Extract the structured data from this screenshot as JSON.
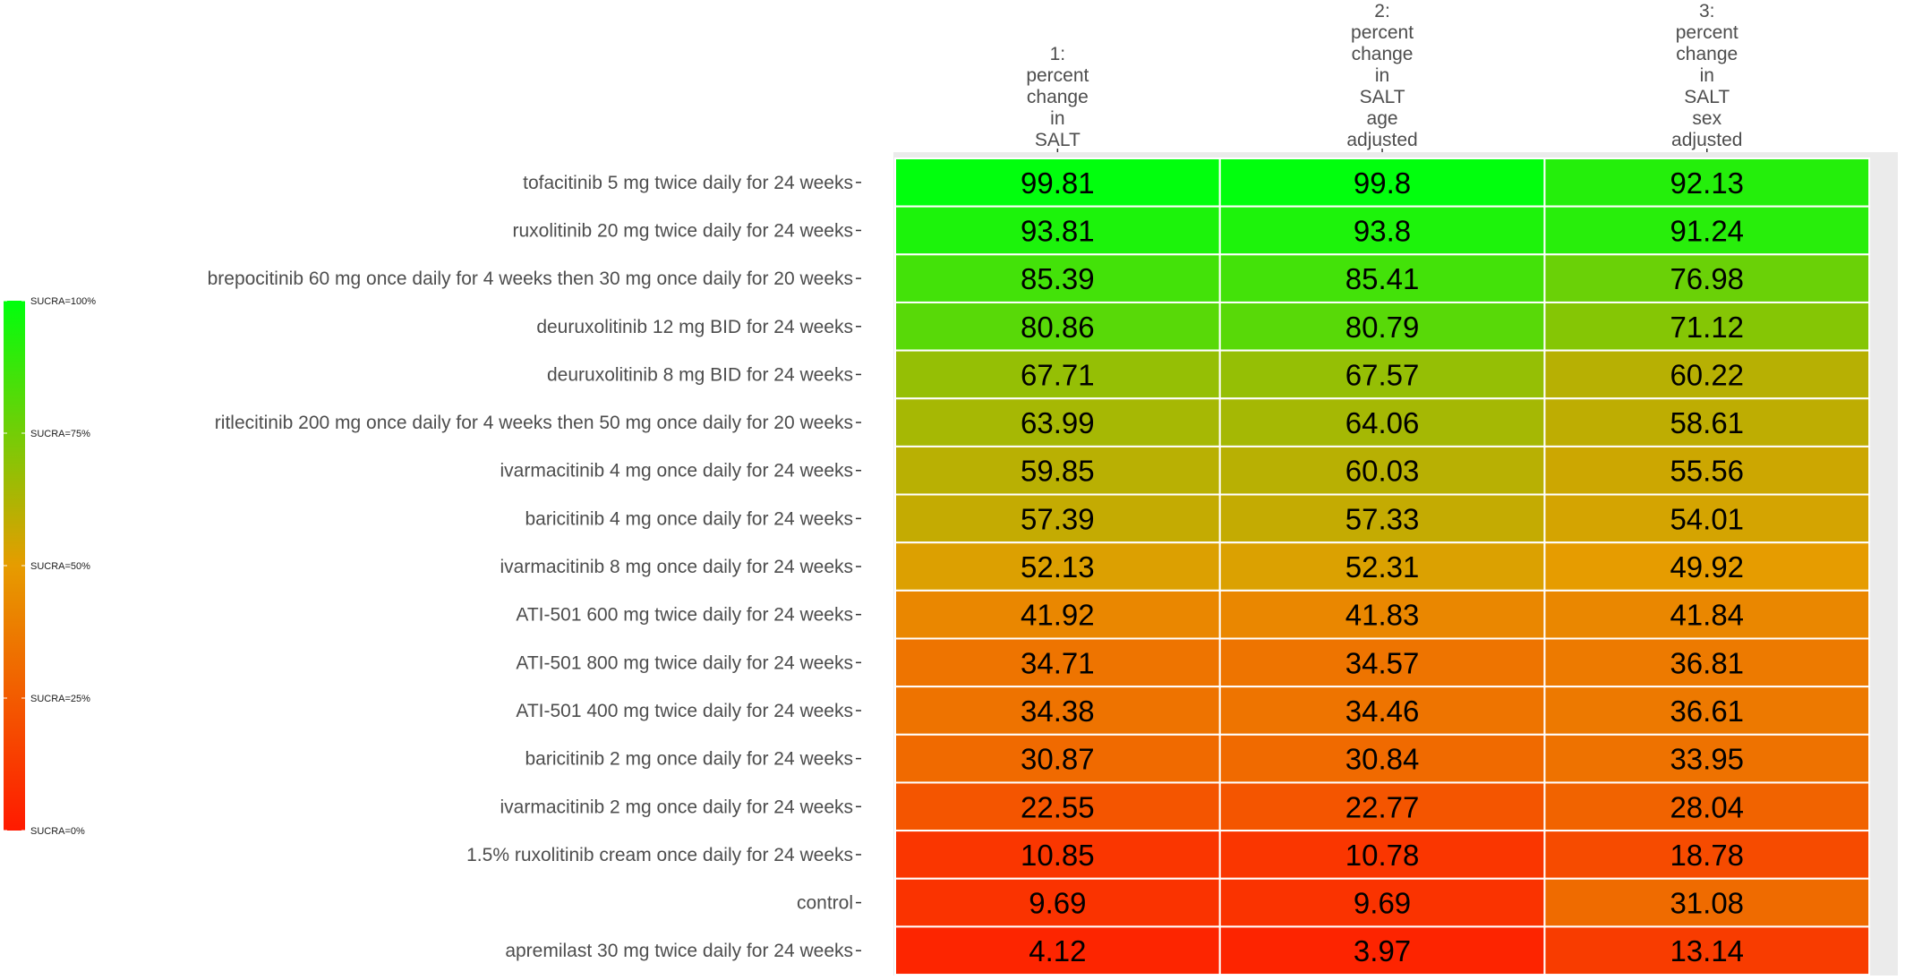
{
  "chart_data": {
    "type": "heatmap",
    "columns": [
      [
        "1:",
        "percent",
        "change",
        "in",
        "SALT"
      ],
      [
        "2:",
        "percent",
        "change",
        "in",
        "SALT",
        "age",
        "adjusted"
      ],
      [
        "3:",
        "percent",
        "change",
        "in",
        "SALT",
        "sex",
        "adjusted"
      ]
    ],
    "rows": [
      "tofacitinib 5 mg twice daily for 24 weeks",
      "ruxolitinib 20 mg twice daily for 24 weeks",
      "brepocitinib 60 mg once daily for 4 weeks then 30 mg once daily for 20 weeks",
      "deuruxolitinib 12 mg BID for 24 weeks",
      "deuruxolitinib 8 mg BID for 24 weeks",
      "ritlecitinib 200 mg once daily for 4 weeks then 50 mg once daily for 20 weeks",
      "ivarmacitinib 4 mg once daily for 24 weeks",
      "baricitinib 4 mg once daily for 24 weeks",
      "ivarmacitinib 8 mg once daily for 24 weeks",
      "ATI-501 600 mg twice daily for 24 weeks",
      "ATI-501 800 mg twice daily for 24 weeks",
      "ATI-501 400 mg twice daily for 24 weeks",
      "baricitinib 2 mg once daily for 24 weeks",
      "ivarmacitinib 2 mg once daily for 24 weeks",
      "1.5% ruxolitinib cream once daily for 24 weeks",
      "control",
      "apremilast 30 mg twice daily for 24 weeks"
    ],
    "values": [
      [
        99.81,
        99.8,
        92.13
      ],
      [
        93.81,
        93.8,
        91.24
      ],
      [
        85.39,
        85.41,
        76.98
      ],
      [
        80.86,
        80.79,
        71.12
      ],
      [
        67.71,
        67.57,
        60.22
      ],
      [
        63.99,
        64.06,
        58.61
      ],
      [
        59.85,
        60.03,
        55.56
      ],
      [
        57.39,
        57.33,
        54.01
      ],
      [
        52.13,
        52.31,
        49.92
      ],
      [
        41.92,
        41.83,
        41.84
      ],
      [
        34.71,
        34.57,
        36.81
      ],
      [
        34.38,
        34.46,
        36.61
      ],
      [
        30.87,
        30.84,
        33.95
      ],
      [
        22.55,
        22.77,
        28.04
      ],
      [
        10.85,
        10.78,
        18.78
      ],
      [
        9.69,
        9.69,
        31.08
      ],
      [
        4.12,
        3.97,
        13.14
      ]
    ],
    "value_labels": [
      [
        "99.81",
        "99.8",
        "92.13"
      ],
      [
        "93.81",
        "93.8",
        "91.24"
      ],
      [
        "85.39",
        "85.41",
        "76.98"
      ],
      [
        "80.86",
        "80.79",
        "71.12"
      ],
      [
        "67.71",
        "67.57",
        "60.22"
      ],
      [
        "63.99",
        "64.06",
        "58.61"
      ],
      [
        "59.85",
        "60.03",
        "55.56"
      ],
      [
        "57.39",
        "57.33",
        "54.01"
      ],
      [
        "52.13",
        "52.31",
        "49.92"
      ],
      [
        "41.92",
        "41.83",
        "41.84"
      ],
      [
        "34.71",
        "34.57",
        "36.81"
      ],
      [
        "34.38",
        "34.46",
        "36.61"
      ],
      [
        "30.87",
        "30.84",
        "33.95"
      ],
      [
        "22.55",
        "22.77",
        "28.04"
      ],
      [
        "10.85",
        "10.78",
        "18.78"
      ],
      [
        "9.69",
        "9.69",
        "31.08"
      ],
      [
        "4.12",
        "3.97",
        "13.14"
      ]
    ],
    "color_scale": {
      "min": 0,
      "max": 100,
      "low": "#ff1a00",
      "mid": "#e69c00",
      "high": "#00ff0d"
    },
    "legend": {
      "position": "left",
      "labels": [
        "SUCRA=100%",
        "SUCRA=75%",
        "SUCRA=50%",
        "SUCRA=25%",
        "SUCRA=0%"
      ],
      "values": [
        100,
        75,
        50,
        25,
        0
      ]
    },
    "panel_background": "#ebebeb",
    "grid_line_color": "#ffffff"
  }
}
